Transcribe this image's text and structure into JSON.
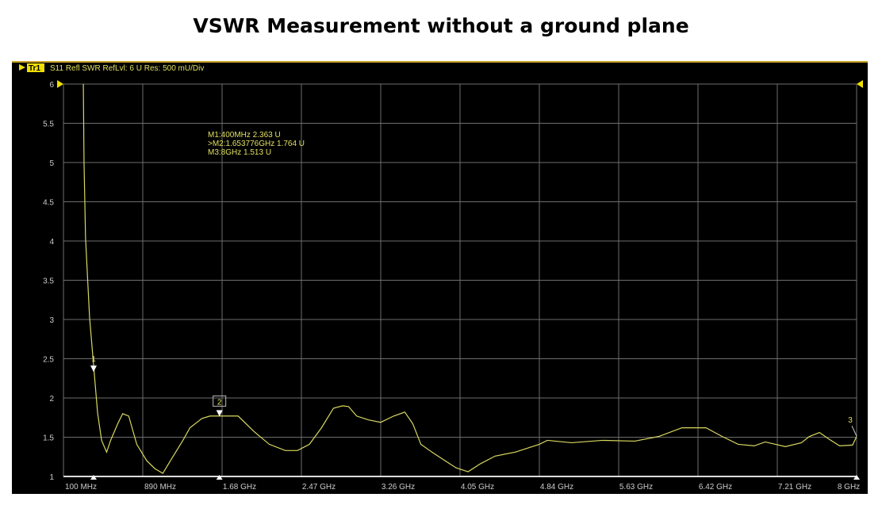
{
  "chart_data": {
    "type": "line",
    "title": "VSWR Measurement without a ground plane",
    "header": {
      "trace": "Tr1",
      "description": "S11 Refl SWR RefLvl: 6  U Res: 500 mU/Div"
    },
    "xlabel": "",
    "ylabel": "",
    "xlim": [
      0.1,
      8.0
    ],
    "ylim": [
      1,
      6
    ],
    "x_tick_labels": [
      "100 MHz",
      "890 MHz",
      "1.68 GHz",
      "2.47 GHz",
      "3.26 GHz",
      "4.05 GHz",
      "4.84 GHz",
      "5.63 GHz",
      "6.42 GHz",
      "7.21 GHz",
      "8 GHz"
    ],
    "y_ticks": [
      1,
      1.5,
      2,
      2.5,
      3,
      3.5,
      4,
      4.5,
      5,
      5.5,
      6
    ],
    "y_tick_labels": [
      "1",
      "1.5",
      "2",
      "2.5",
      "3",
      "3.5",
      "4",
      "4.5",
      "5",
      "5.5",
      "6"
    ],
    "grid": true,
    "colors": {
      "trace": "#d8d860",
      "grid": "#6e6e6e",
      "text": "#e0e060"
    },
    "markers": [
      {
        "label": "1",
        "freq_ghz": 0.4,
        "swr": 2.363
      },
      {
        "label": "2",
        "freq_ghz": 1.653776,
        "swr": 1.764
      },
      {
        "label": "3",
        "freq_ghz": 8.0,
        "swr": 1.513
      }
    ],
    "marker_readout": [
      "M1:400MHz  2.363  U",
      ">M2:1.653776GHz  1.764  U",
      "M3:8GHz  1.513  U"
    ],
    "series": [
      {
        "name": "S11 SWR",
        "x": [
          0.298,
          0.305,
          0.32,
          0.36,
          0.4,
          0.44,
          0.48,
          0.53,
          0.57,
          0.64,
          0.69,
          0.75,
          0.83,
          0.93,
          1.01,
          1.09,
          1.17,
          1.29,
          1.36,
          1.48,
          1.56,
          1.68,
          1.84,
          2.0,
          2.15,
          2.31,
          2.43,
          2.55,
          2.67,
          2.79,
          2.88,
          2.94,
          3.02,
          3.14,
          3.26,
          3.39,
          3.5,
          3.58,
          3.66,
          3.77,
          3.89,
          4.01,
          4.13,
          4.25,
          4.4,
          4.6,
          4.84,
          4.92,
          5.16,
          5.47,
          5.79,
          6.03,
          6.26,
          6.5,
          6.66,
          6.82,
          6.98,
          7.09,
          7.29,
          7.45,
          7.53,
          7.63,
          7.72,
          7.83,
          7.96,
          8.0
        ],
        "y": [
          6.0,
          5.0,
          4.04,
          3.03,
          2.42,
          1.81,
          1.46,
          1.31,
          1.46,
          1.67,
          1.8,
          1.77,
          1.41,
          1.2,
          1.1,
          1.04,
          1.21,
          1.46,
          1.62,
          1.74,
          1.77,
          1.77,
          1.77,
          1.57,
          1.41,
          1.33,
          1.33,
          1.41,
          1.62,
          1.87,
          1.9,
          1.89,
          1.77,
          1.72,
          1.69,
          1.77,
          1.82,
          1.67,
          1.41,
          1.31,
          1.21,
          1.11,
          1.06,
          1.16,
          1.26,
          1.31,
          1.41,
          1.46,
          1.43,
          1.46,
          1.45,
          1.51,
          1.62,
          1.62,
          1.51,
          1.41,
          1.39,
          1.44,
          1.38,
          1.43,
          1.51,
          1.56,
          1.48,
          1.39,
          1.4,
          1.51
        ]
      }
    ]
  }
}
